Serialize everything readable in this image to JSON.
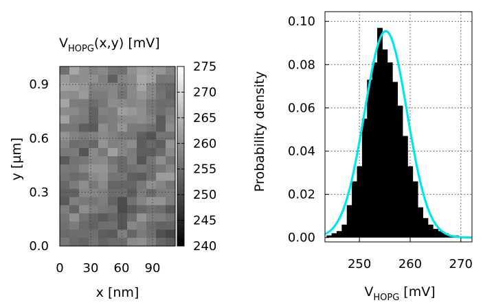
{
  "chart_data": [
    {
      "type": "heatmap",
      "title_main": "V",
      "title_sub": "HOPG",
      "title_rest": "(x,y) [mV]",
      "xlabel": "x [nm]",
      "ylabel": "y [µm]",
      "xlim": [
        0,
        112
      ],
      "ylim": [
        0,
        1.0
      ],
      "xticks": [
        0,
        30,
        60,
        90
      ],
      "xtick_labels": [
        "0",
        "30",
        "60",
        "90"
      ],
      "yticks": [
        0.0,
        0.3,
        0.6,
        0.9
      ],
      "ytick_labels": [
        "0.0",
        "0.3",
        "0.6",
        "0.9"
      ],
      "colorbar_range": [
        240,
        275
      ],
      "colorbar_ticks": [
        240,
        245,
        250,
        255,
        260,
        265,
        270,
        275
      ],
      "colorbar_tick_labels": [
        "240",
        "245",
        "250",
        "255",
        "260",
        "265",
        "270",
        "275"
      ],
      "grid": true
    },
    {
      "type": "bar",
      "xlabel_main": "V",
      "xlabel_sub": "HOPG",
      "xlabel_rest": " [mV]",
      "ylabel": "Probability density",
      "xlim": [
        243.2,
        272.2
      ],
      "ylim": [
        -0.002,
        0.1045
      ],
      "xticks": [
        250,
        260,
        270
      ],
      "xtick_labels": [
        "250",
        "260",
        "270"
      ],
      "yticks": [
        0.0,
        0.02,
        0.04,
        0.06,
        0.08,
        0.1
      ],
      "ytick_labels": [
        "0.00",
        "0.02",
        "0.04",
        "0.06",
        "0.08",
        "0.10"
      ],
      "bin_width": 1,
      "bins": [
        {
          "x": 244,
          "y": 0.001
        },
        {
          "x": 245,
          "y": 0.002
        },
        {
          "x": 246,
          "y": 0.003
        },
        {
          "x": 247,
          "y": 0.006
        },
        {
          "x": 248,
          "y": 0.015
        },
        {
          "x": 249,
          "y": 0.026
        },
        {
          "x": 250,
          "y": 0.033
        },
        {
          "x": 251,
          "y": 0.055
        },
        {
          "x": 252,
          "y": 0.073
        },
        {
          "x": 253,
          "y": 0.081
        },
        {
          "x": 254,
          "y": 0.097
        },
        {
          "x": 255,
          "y": 0.087
        },
        {
          "x": 256,
          "y": 0.081
        },
        {
          "x": 257,
          "y": 0.072
        },
        {
          "x": 258,
          "y": 0.061
        },
        {
          "x": 259,
          "y": 0.047
        },
        {
          "x": 260,
          "y": 0.033
        },
        {
          "x": 261,
          "y": 0.026
        },
        {
          "x": 262,
          "y": 0.014
        },
        {
          "x": 263,
          "y": 0.009
        },
        {
          "x": 264,
          "y": 0.006
        },
        {
          "x": 265,
          "y": 0.004
        },
        {
          "x": 266,
          "y": 0.003
        },
        {
          "x": 267,
          "y": 0.002
        },
        {
          "x": 268,
          "y": 0.001
        },
        {
          "x": 269,
          "y": 0.001
        }
      ],
      "fit": {
        "type": "gaussian",
        "mean": 255.2,
        "sigma": 4.2,
        "peak": 0.0955,
        "color": "#00e5ee"
      },
      "grid": true
    }
  ]
}
